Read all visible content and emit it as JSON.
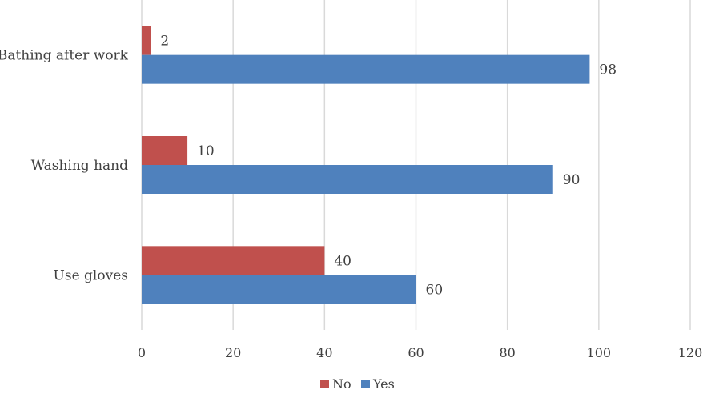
{
  "chart_data": {
    "type": "bar",
    "orientation": "horizontal",
    "categories": [
      "Use gloves",
      "Washing hand",
      "Bathing after work"
    ],
    "series": [
      {
        "name": "No",
        "color": "#c0504d",
        "values": [
          40,
          10,
          2
        ]
      },
      {
        "name": "Yes",
        "color": "#4f81bd",
        "values": [
          60,
          90,
          98
        ]
      }
    ],
    "xlim": [
      0,
      120
    ],
    "x_ticks": [
      0,
      20,
      40,
      60,
      80,
      100,
      120
    ],
    "grid": "vertical",
    "legend_position": "bottom",
    "data_labels": true
  }
}
